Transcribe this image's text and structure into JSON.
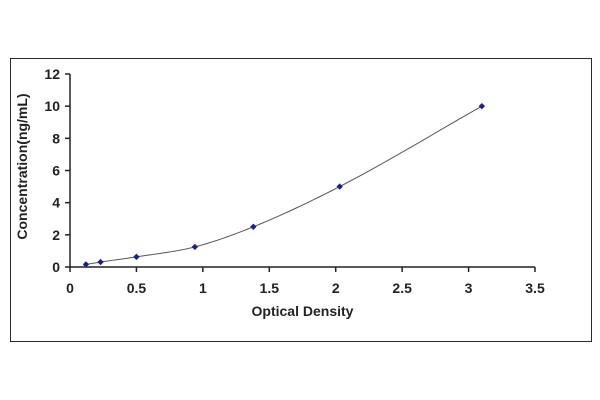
{
  "chart_data": {
    "type": "scatter",
    "title": "",
    "xlabel": "Optical Density",
    "ylabel": "Concentration(ng/mL)",
    "xlim": [
      0,
      3.5
    ],
    "ylim": [
      0,
      12
    ],
    "x_ticks": [
      0,
      0.5,
      1,
      1.5,
      2,
      2.5,
      3,
      3.5
    ],
    "x_tick_labels": [
      "0",
      "0.5",
      "1",
      "1.5",
      "2",
      "2.5",
      "3",
      "3.5"
    ],
    "y_ticks": [
      0,
      2,
      4,
      6,
      8,
      10,
      12
    ],
    "y_tick_labels": [
      "0",
      "2",
      "4",
      "6",
      "8",
      "10",
      "12"
    ],
    "grid": false,
    "legend": "none",
    "series": [
      {
        "x": [
          0.12,
          0.23,
          0.5,
          0.94,
          1.38,
          2.03,
          3.1
        ],
        "y": [
          0.16,
          0.31,
          0.63,
          1.25,
          2.5,
          5.0,
          10.0
        ],
        "marker": "diamond",
        "color": "#1a237e",
        "curve": "smooth fitted"
      }
    ]
  }
}
